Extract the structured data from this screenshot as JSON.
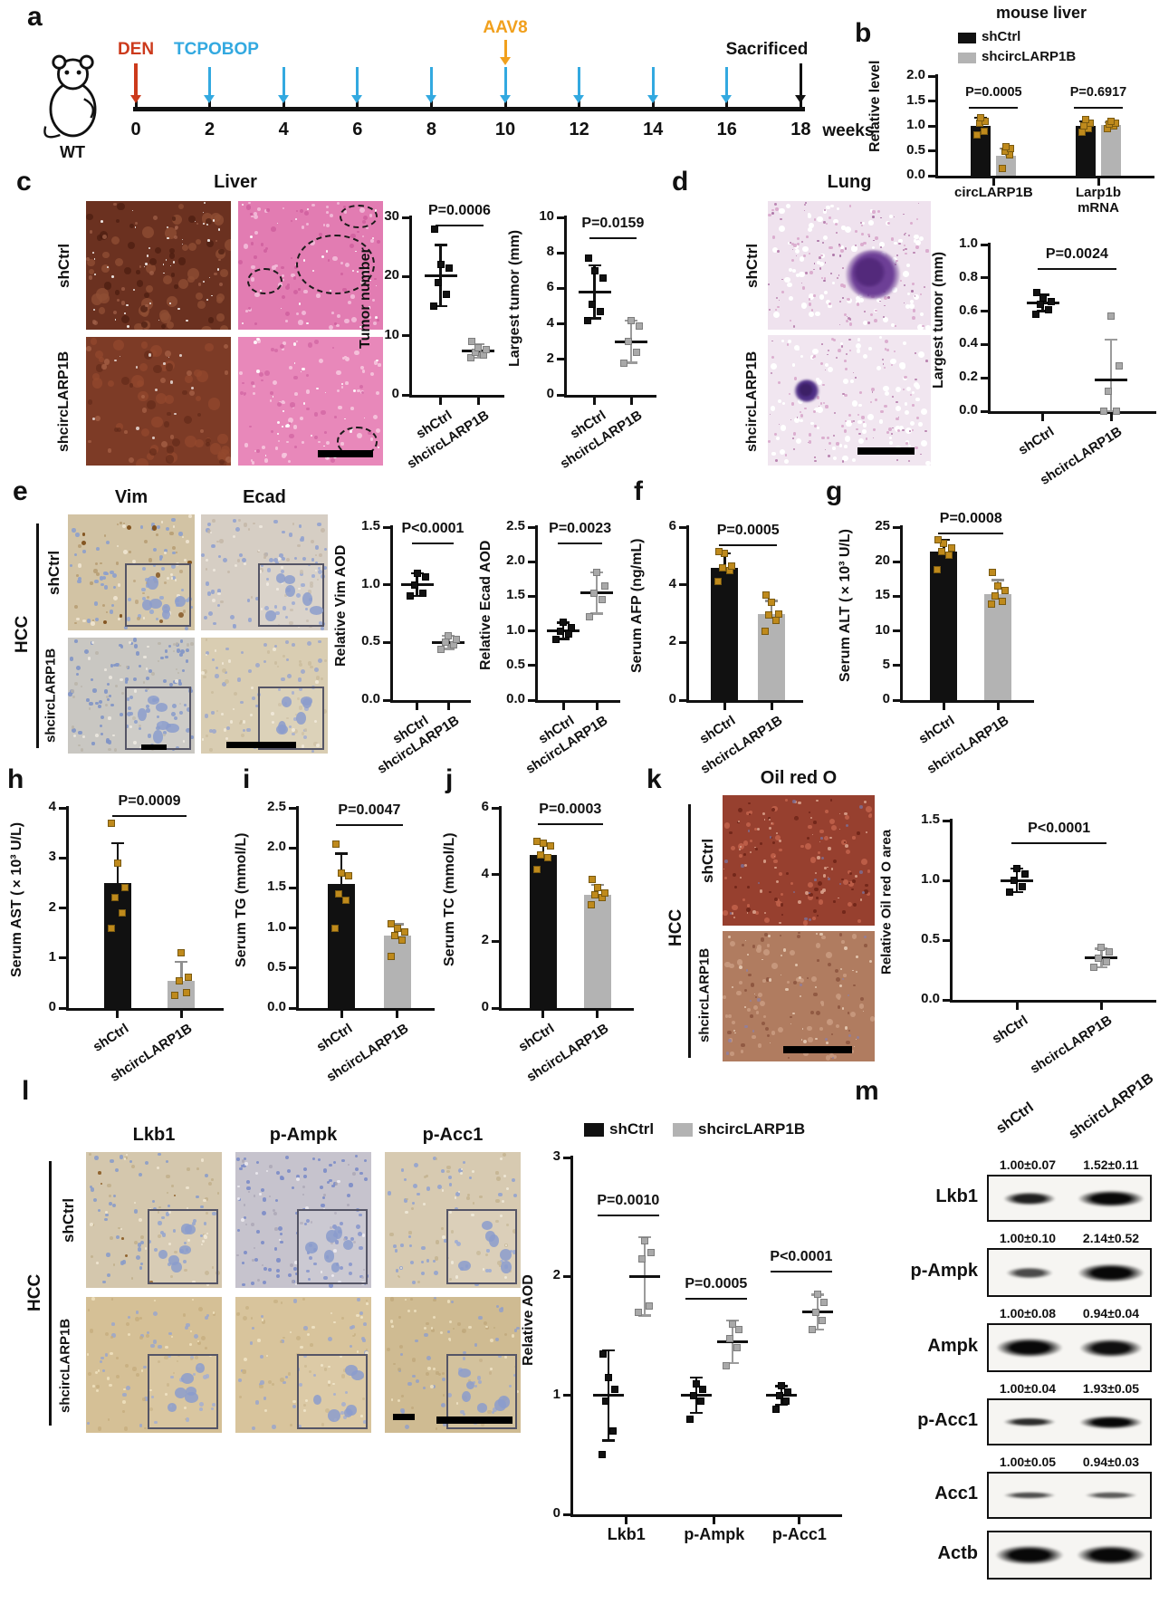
{
  "colors": {
    "black": "#111111",
    "gray": "#b3b3b3",
    "gray_point": "#a9a9a9",
    "gold": "#bf8a1c",
    "blue": "#33a9e0",
    "red": "#cc3a1c",
    "orange": "#f1a01d"
  },
  "panel_a": {
    "letter": "a",
    "mouse_label": "WT",
    "unit": "weeks",
    "ticks": [
      0,
      2,
      4,
      6,
      8,
      10,
      12,
      14,
      16,
      18
    ],
    "den": {
      "label": "DEN",
      "color": "#cc3a1c",
      "week": 0
    },
    "tcpobop": {
      "label": "TCPOBOP",
      "color": "#33a9e0",
      "weeks": [
        2,
        4,
        6,
        8,
        10,
        12,
        14,
        16
      ]
    },
    "aav8": {
      "label": "AAV8",
      "color": "#f1a01d",
      "week": 10
    },
    "sacrificed": {
      "label": "Sacrificed",
      "color": "#111111",
      "week": 18
    }
  },
  "panel_b": {
    "letter": "b"
  },
  "panel_c": {
    "letter": "c",
    "title": "Liver",
    "row_labels": [
      "shCtrl",
      "shcircLARP1B"
    ]
  },
  "panel_d": {
    "letter": "d",
    "title": "Lung",
    "row_labels": [
      "shCtrl",
      "shcircLARP1B"
    ]
  },
  "panel_e": {
    "letter": "e",
    "col_labels": [
      "Vim",
      "Ecad"
    ],
    "group_label": "HCC",
    "row_labels": [
      "shCtrl",
      "shcircLARP1B"
    ]
  },
  "panel_f": {
    "letter": "f"
  },
  "panel_g": {
    "letter": "g"
  },
  "panel_h": {
    "letter": "h"
  },
  "panel_i": {
    "letter": "i"
  },
  "panel_j": {
    "letter": "j"
  },
  "panel_k": {
    "letter": "k",
    "title": "Oil red O",
    "group_label": "HCC",
    "row_labels": [
      "shCtrl",
      "shcircLARP1B"
    ]
  },
  "panel_l": {
    "letter": "l",
    "col_labels": [
      "Lkb1",
      "p-Ampk",
      "p-Acc1"
    ],
    "group_label": "HCC",
    "row_labels": [
      "shCtrl",
      "shcircLARP1B"
    ],
    "legend": [
      "shCtrl",
      "shcircLARP1B"
    ]
  },
  "panel_m": {
    "letter": "m",
    "col_labels": [
      "shCtrl",
      "shcircLARP1B"
    ],
    "rows": [
      {
        "label": "Lkb1",
        "values": [
          "1.00±0.07",
          "1.52±0.11"
        ]
      },
      {
        "label": "p-Ampk",
        "values": [
          "1.00±0.10",
          "2.14±0.52"
        ]
      },
      {
        "label": "Ampk",
        "values": [
          "1.00±0.08",
          "0.94±0.04"
        ]
      },
      {
        "label": "p-Acc1",
        "values": [
          "1.00±0.04",
          "1.93±0.05"
        ]
      },
      {
        "label": "Acc1",
        "values": [
          "1.00±0.05",
          "0.94±0.03"
        ]
      },
      {
        "label": "Actb",
        "values": null
      }
    ]
  },
  "chart_data": [
    {
      "id": "b",
      "type": "bars_grouped",
      "title": "mouse liver",
      "ylabel": "Relative level",
      "ylim": [
        0,
        2
      ],
      "yticks": [
        "0.0",
        "0.5",
        "1.0",
        "1.5",
        "2.0"
      ],
      "legend": [
        "shCtrl",
        "shcircLARP1B"
      ],
      "groups": [
        {
          "label": "circLARP1B",
          "p": "P=0.0005",
          "bracket_v": 1.38,
          "bars": [
            {
              "value": 1.0,
              "err": 0.17,
              "points": [
                0.82,
                0.9,
                1.05,
                1.1,
                1.17
              ]
            },
            {
              "value": 0.4,
              "err": 0.15,
              "points": [
                0.15,
                0.42,
                0.5,
                0.55,
                0.58
              ]
            }
          ]
        },
        {
          "label": "Larp1b\nmRNA",
          "p": "P=0.6917",
          "bracket_v": 1.38,
          "bars": [
            {
              "value": 1.0,
              "err": 0.1,
              "points": [
                0.88,
                0.95,
                1.0,
                1.06,
                1.12
              ]
            },
            {
              "value": 1.02,
              "err": 0.06,
              "points": [
                0.95,
                1.0,
                1.03,
                1.06,
                1.1
              ]
            }
          ]
        }
      ]
    },
    {
      "id": "c_tumor",
      "type": "points2",
      "ylabel": "Tumor number",
      "ylim": [
        0,
        30
      ],
      "yticks": [
        "0",
        "10",
        "20",
        "30"
      ],
      "p": "P=0.0006",
      "bracket_v": 28.8,
      "cats": [
        "shCtrl",
        "shcircLARP1B"
      ],
      "groups": [
        {
          "mean": 20.2,
          "err": 5.2,
          "points": [
            15,
            17,
            19,
            21.5,
            22,
            28
          ]
        },
        {
          "mean": 7.4,
          "err": 1.2,
          "points": [
            6.3,
            6.8,
            7.2,
            7.6,
            8,
            9
          ]
        }
      ]
    },
    {
      "id": "c_largest",
      "type": "points2",
      "ylabel": "Largest tumor (mm)",
      "ylim": [
        0,
        10
      ],
      "yticks": [
        "0",
        "2",
        "4",
        "6",
        "8",
        "10"
      ],
      "p": "P=0.0159",
      "bracket_v": 8.9,
      "cats": [
        "shCtrl",
        "shcircLARP1B"
      ],
      "groups": [
        {
          "mean": 5.8,
          "err": 1.5,
          "points": [
            4.2,
            4.7,
            5.1,
            6.6,
            7.0,
            7.7
          ]
        },
        {
          "mean": 3.0,
          "err": 1.2,
          "points": [
            1.8,
            2.4,
            3.0,
            3.9,
            4.2
          ]
        }
      ]
    },
    {
      "id": "d_largest",
      "type": "points2",
      "ylabel": "Largest tumor (mm)",
      "ylim": [
        0,
        1
      ],
      "yticks": [
        "0.0",
        "0.2",
        "0.4",
        "0.6",
        "0.8",
        "1.0"
      ],
      "p": "P=0.0024",
      "bracket_v": 0.86,
      "cats": [
        "shCtrl",
        "shcircLARP1B"
      ],
      "groups": [
        {
          "mean": 0.65,
          "err": 0.05,
          "points": [
            0.58,
            0.61,
            0.64,
            0.66,
            0.68,
            0.71
          ]
        },
        {
          "mean": 0.19,
          "err": 0.24,
          "points": [
            0.0,
            0.0,
            0.12,
            0.27,
            0.57
          ]
        }
      ]
    },
    {
      "id": "e_vim",
      "type": "points2",
      "ylabel": "Relative Vim AOD",
      "ylim": [
        0,
        1.5
      ],
      "yticks": [
        "0.0",
        "0.5",
        "1.0",
        "1.5"
      ],
      "p": "P<0.0001",
      "bracket_v": 1.37,
      "cats": [
        "shCtrl",
        "shcircLARP1B"
      ],
      "groups": [
        {
          "mean": 1.0,
          "err": 0.1,
          "points": [
            0.9,
            0.93,
            1.0,
            1.07,
            1.1
          ]
        },
        {
          "mean": 0.5,
          "err": 0.06,
          "points": [
            0.44,
            0.48,
            0.5,
            0.53,
            0.56
          ]
        }
      ]
    },
    {
      "id": "e_ecad",
      "type": "points2",
      "ylabel": "Relative Ecad AOD",
      "ylim": [
        0,
        2.5
      ],
      "yticks": [
        "0.0",
        "0.5",
        "1.0",
        "1.5",
        "2.0",
        "2.5"
      ],
      "p": "P=0.0023",
      "bracket_v": 2.28,
      "cats": [
        "shCtrl",
        "shcircLARP1B"
      ],
      "groups": [
        {
          "mean": 1.0,
          "err": 0.12,
          "points": [
            0.88,
            0.95,
            1.0,
            1.05,
            1.12
          ]
        },
        {
          "mean": 1.55,
          "err": 0.3,
          "points": [
            1.2,
            1.45,
            1.55,
            1.65,
            1.85
          ]
        }
      ]
    },
    {
      "id": "f_afp",
      "type": "bars2",
      "ylabel": "Serum AFP (ng/mL)",
      "ylim": [
        0,
        6
      ],
      "yticks": [
        "0",
        "2",
        "4",
        "6"
      ],
      "p": "P=0.0005",
      "bracket_v": 5.4,
      "cats": [
        "shCtrl",
        "shcircLARP1B"
      ],
      "bars": [
        {
          "value": 4.6,
          "err": 0.5,
          "points": [
            4.1,
            4.5,
            4.6,
            4.65,
            5.1,
            5.15
          ]
        },
        {
          "value": 3.0,
          "err": 0.45,
          "points": [
            2.4,
            2.75,
            2.95,
            3.0,
            3.4,
            3.65
          ]
        }
      ]
    },
    {
      "id": "g_alt",
      "type": "bars2",
      "ylabel": "Serum ALT (×10³ U/L)",
      "ylim": [
        0,
        25
      ],
      "yticks": [
        "0",
        "5",
        "10",
        "15",
        "20",
        "25"
      ],
      "p": "P=0.0008",
      "bracket_v": 24.2,
      "cats": [
        "shCtrl",
        "shcircLARP1B"
      ],
      "bars": [
        {
          "value": 21.5,
          "err": 1.7,
          "points": [
            18.8,
            21.0,
            21.5,
            22.0,
            22.6,
            23.2
          ]
        },
        {
          "value": 15.3,
          "err": 2.1,
          "points": [
            13.9,
            14.3,
            15.0,
            15.9,
            16.5,
            18.5
          ]
        }
      ]
    },
    {
      "id": "h_ast",
      "type": "bars2",
      "ylabel": "Serum AST (×10³ U/L)",
      "ylim": [
        0,
        4
      ],
      "yticks": [
        "0",
        "1",
        "2",
        "3",
        "4"
      ],
      "p": "P=0.0009",
      "bracket_v": 3.85,
      "cats": [
        "shCtrl",
        "shcircLARP1B"
      ],
      "bars": [
        {
          "value": 2.5,
          "err": 0.8,
          "points": [
            1.6,
            1.9,
            2.2,
            2.4,
            2.9,
            3.7
          ]
        },
        {
          "value": 0.55,
          "err": 0.38,
          "points": [
            0.25,
            0.3,
            0.55,
            0.62,
            1.1
          ]
        }
      ]
    },
    {
      "id": "i_tg",
      "type": "bars2",
      "ylabel": "Serum TG (mmol/L)",
      "ylim": [
        0,
        2.5
      ],
      "yticks": [
        "0.0",
        "0.5",
        "1.0",
        "1.5",
        "2.0",
        "2.5"
      ],
      "p": "P=0.0047",
      "bracket_v": 2.3,
      "cats": [
        "shCtrl",
        "shcircLARP1B"
      ],
      "bars": [
        {
          "value": 1.55,
          "err": 0.38,
          "points": [
            1.0,
            1.35,
            1.42,
            1.65,
            1.68,
            2.05
          ]
        },
        {
          "value": 0.9,
          "err": 0.15,
          "points": [
            0.65,
            0.85,
            0.9,
            0.95,
            1.0,
            1.05
          ]
        }
      ]
    },
    {
      "id": "j_tc",
      "type": "bars2",
      "ylabel": "Serum TC (mmol/L)",
      "ylim": [
        0,
        6
      ],
      "yticks": [
        "0",
        "2",
        "4",
        "6"
      ],
      "p": "P=0.0003",
      "bracket_v": 5.55,
      "cats": [
        "shCtrl",
        "shcircLARP1B"
      ],
      "bars": [
        {
          "value": 4.6,
          "err": 0.35,
          "points": [
            4.15,
            4.5,
            4.6,
            4.85,
            4.95,
            5.0
          ]
        },
        {
          "value": 3.4,
          "err": 0.3,
          "points": [
            3.1,
            3.3,
            3.4,
            3.45,
            3.6,
            3.85
          ]
        }
      ]
    },
    {
      "id": "k_oro",
      "type": "points2",
      "ylabel": "Relative Oil red O area",
      "ylim": [
        0,
        1.5
      ],
      "yticks": [
        "0.0",
        "0.5",
        "1.0",
        "1.5"
      ],
      "p": "P<0.0001",
      "bracket_v": 1.32,
      "ylfs": 15,
      "cats": [
        "shCtrl",
        "shcircLARP1B"
      ],
      "groups": [
        {
          "mean": 1.0,
          "err": 0.1,
          "points": [
            0.9,
            0.95,
            1.0,
            1.05,
            1.1
          ]
        },
        {
          "mean": 0.35,
          "err": 0.08,
          "points": [
            0.27,
            0.32,
            0.35,
            0.4,
            0.44
          ]
        }
      ]
    },
    {
      "id": "l_aod",
      "type": "points_grouped",
      "ylabel": "Relative AOD",
      "ylim": [
        0,
        3
      ],
      "yticks": [
        "0",
        "1",
        "2",
        "3"
      ],
      "legend": [
        "shCtrl",
        "shcircLARP1B"
      ],
      "groups": [
        {
          "label": "Lkb1",
          "p": "P=0.0010",
          "bracket_v": 2.52,
          "sets": [
            {
              "mean": 1.0,
              "err": 0.38,
              "points": [
                0.5,
                0.7,
                0.95,
                1.05,
                1.15,
                1.35
              ]
            },
            {
              "mean": 2.0,
              "err": 0.33,
              "points": [
                1.7,
                1.75,
                2.15,
                2.2,
                2.3
              ]
            }
          ]
        },
        {
          "label": "p-Ampk",
          "p": "P=0.0005",
          "bracket_v": 1.82,
          "sets": [
            {
              "mean": 1.0,
              "err": 0.15,
              "points": [
                0.8,
                0.95,
                1.0,
                1.05,
                1.1
              ]
            },
            {
              "mean": 1.45,
              "err": 0.18,
              "points": [
                1.25,
                1.4,
                1.48,
                1.55,
                1.6
              ]
            }
          ]
        },
        {
          "label": "p-Acc1",
          "p": "P<0.0001",
          "bracket_v": 2.05,
          "sets": [
            {
              "mean": 1.0,
              "err": 0.08,
              "points": [
                0.88,
                0.95,
                1.0,
                1.03,
                1.08
              ]
            },
            {
              "mean": 1.7,
              "err": 0.15,
              "points": [
                1.55,
                1.63,
                1.7,
                1.78,
                1.85
              ]
            }
          ]
        }
      ]
    }
  ]
}
